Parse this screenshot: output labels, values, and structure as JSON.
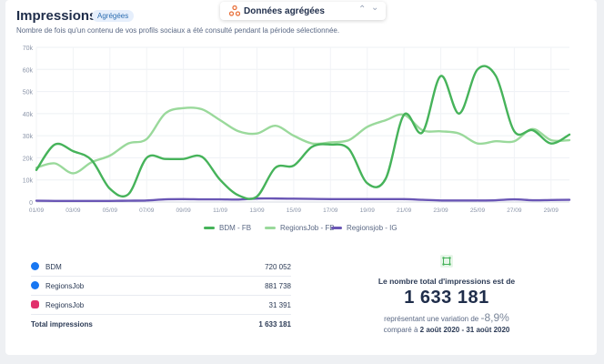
{
  "header": {
    "title": "Impressions",
    "badge": "Agrégées",
    "subtitle": "Nombre de fois qu'un contenu de vos profils sociaux a été consulté pendant la période sélectionnée."
  },
  "selector": {
    "label": "Données agrégées",
    "icon": "share-nodes-icon"
  },
  "chart_data": {
    "type": "line",
    "x": [
      "01/09",
      "02/09",
      "03/09",
      "04/09",
      "05/09",
      "06/09",
      "07/09",
      "08/09",
      "09/09",
      "10/09",
      "11/09",
      "12/09",
      "13/09",
      "14/09",
      "15/09",
      "16/09",
      "17/09",
      "18/09",
      "19/09",
      "20/09",
      "21/09",
      "22/09",
      "23/09",
      "24/09",
      "25/09",
      "26/09",
      "27/09",
      "28/09",
      "29/09",
      "30/09"
    ],
    "tick_labels": [
      "01/09",
      "03/09",
      "05/09",
      "07/09",
      "09/09",
      "11/09",
      "13/09",
      "15/09",
      "17/09",
      "19/09",
      "21/09",
      "23/09",
      "25/09",
      "27/09",
      "29/09"
    ],
    "yticks": [
      "0",
      "10k",
      "20k",
      "30k",
      "40k",
      "50k",
      "60k",
      "70k"
    ],
    "ylim": [
      0,
      70000
    ],
    "grid": true,
    "legend": "bottom",
    "series": [
      {
        "name": "BDM - FB",
        "color": "#46b35a",
        "values": [
          14500,
          26000,
          23000,
          19000,
          6000,
          3500,
          20000,
          19500,
          19500,
          20500,
          10000,
          3000,
          2500,
          15500,
          16500,
          25000,
          26000,
          24000,
          8500,
          10500,
          39500,
          31500,
          57000,
          40000,
          60000,
          57000,
          32000,
          32500,
          26500,
          30500
        ]
      },
      {
        "name": "RegionsJob - FB",
        "color": "#9ad99b",
        "values": [
          15500,
          17500,
          13000,
          18000,
          21000,
          26500,
          28500,
          40000,
          42500,
          42000,
          37000,
          32000,
          31000,
          34500,
          30000,
          26500,
          27000,
          28000,
          34000,
          37000,
          39500,
          32500,
          32000,
          31000,
          26500,
          27500,
          27500,
          33000,
          28000,
          28000
        ]
      },
      {
        "name": "Regionsjob - IG",
        "color": "#6a56b5",
        "values": [
          600,
          500,
          500,
          500,
          500,
          600,
          700,
          1200,
          1300,
          1200,
          1200,
          1100,
          1600,
          1600,
          1500,
          1400,
          1300,
          1300,
          1300,
          1300,
          1300,
          1000,
          700,
          700,
          700,
          800,
          1200,
          800,
          900,
          1000
        ]
      }
    ]
  },
  "table": {
    "rows": [
      {
        "label": "BDM",
        "value": "720 052",
        "icon": "facebook-icon",
        "color": "#1877f2"
      },
      {
        "label": "RegionsJob",
        "value": "881 738",
        "icon": "facebook-icon",
        "color": "#1877f2"
      },
      {
        "label": "RegionsJob",
        "value": "31 391",
        "icon": "instagram-icon",
        "color": "#e1306c"
      }
    ],
    "total_label": "Total impressions",
    "total_value": "1 633 181"
  },
  "summary": {
    "heading": "Le nombre total d'impressions est de",
    "total": "1 633 181",
    "variation_prefix": "représentant une variation de",
    "variation_value": "-8,9%",
    "compare_prefix": "comparé à",
    "compare_period": "2 août 2020 - 31 août 2020"
  }
}
